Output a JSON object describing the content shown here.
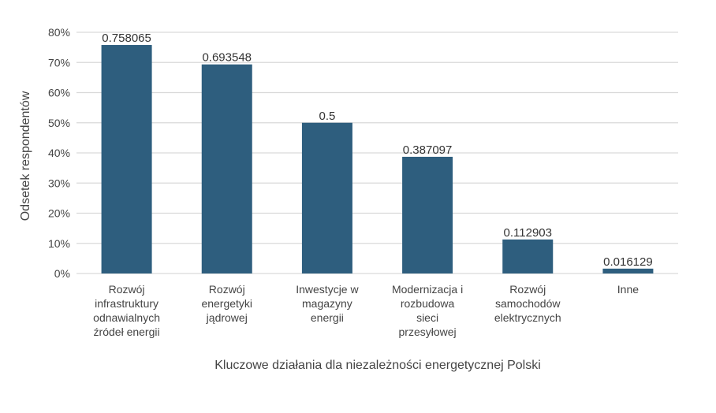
{
  "chart_data": {
    "type": "bar",
    "categories": [
      [
        "Rozwój",
        "infrastruktury",
        "odnawialnych",
        "źródeł energii"
      ],
      [
        "Rozwój",
        "energetyki",
        "jądrowej"
      ],
      [
        "Inwestycje w",
        "magazyny",
        "energii"
      ],
      [
        "Modernizacja i",
        "rozbudowa",
        "sieci",
        "przesyłowej"
      ],
      [
        "Rozwój",
        "samochodów",
        "elektrycznych"
      ],
      [
        "Inne"
      ]
    ],
    "values": [
      0.758065,
      0.693548,
      0.5,
      0.387097,
      0.112903,
      0.016129
    ],
    "value_labels": [
      "0.758065",
      "0.693548",
      "0.5",
      "0.387097",
      "0.112903",
      "0.016129"
    ],
    "xlabel": "Kluczowe działania dla niezależności energetycznej Polski",
    "ylabel": "Odsetek respondentów",
    "ylim": [
      0,
      0.8
    ],
    "yticks": [
      0,
      0.1,
      0.2,
      0.3,
      0.4,
      0.5,
      0.6,
      0.7,
      0.8
    ],
    "ytick_labels": [
      "0%",
      "10%",
      "20%",
      "30%",
      "40%",
      "50%",
      "60%",
      "70%",
      "80%"
    ],
    "grid": true,
    "legend": "none",
    "bar_color": "#2e5e7e",
    "grid_color": "#d9d9d9"
  }
}
